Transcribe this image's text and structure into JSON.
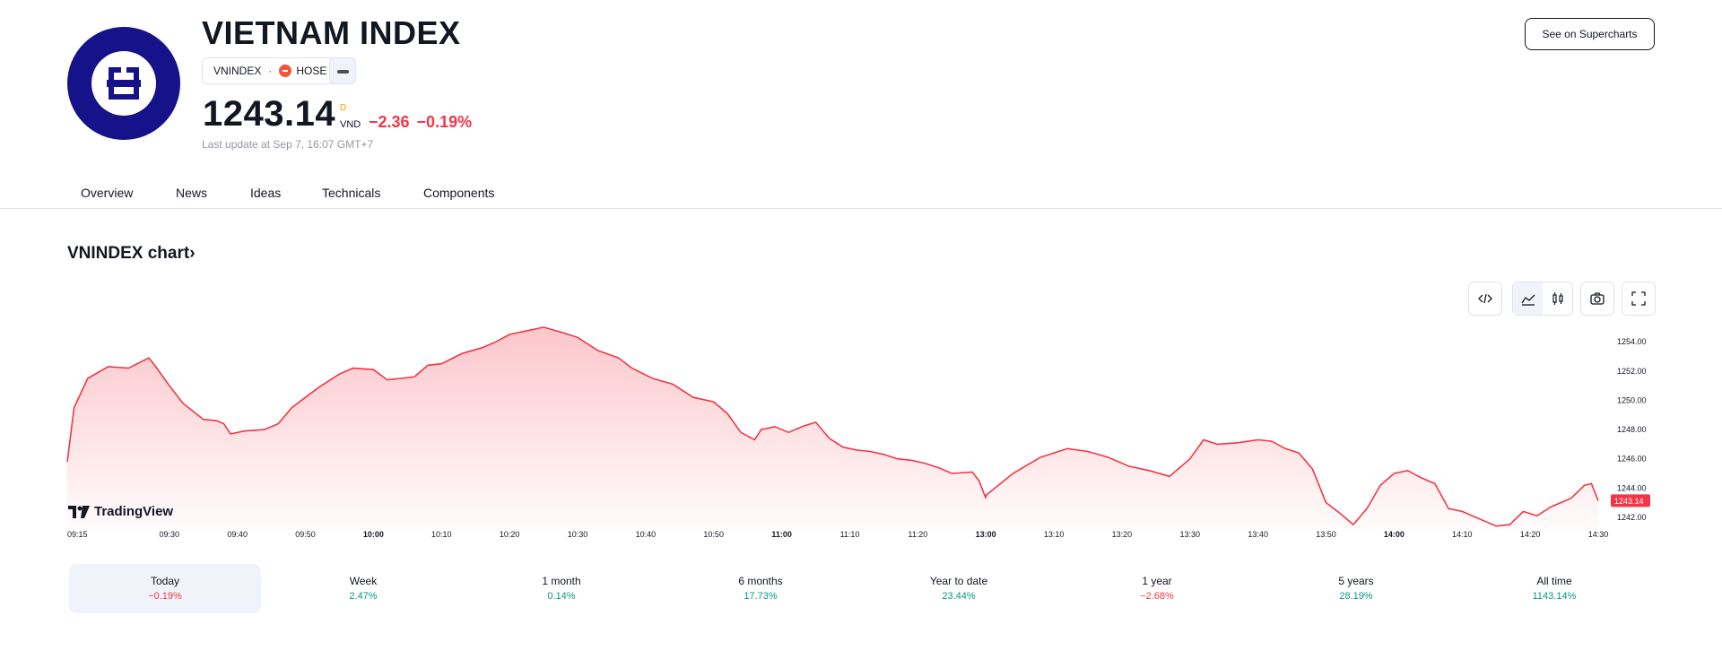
{
  "header": {
    "title": "VIETNAM INDEX",
    "symbol": "VNINDEX",
    "separator": "·",
    "exchange": "HOSE",
    "price": "1243.14",
    "market_status": "D",
    "currency": "VND",
    "change_abs": "−2.36",
    "change_pct": "−0.19%",
    "last_update": "Last update at Sep 7, 16:07 GMT+7",
    "supercharts_label": "See on Supercharts"
  },
  "tabs": [
    {
      "label": "Overview",
      "active": true
    },
    {
      "label": "News"
    },
    {
      "label": "Ideas"
    },
    {
      "label": "Technicals"
    },
    {
      "label": "Components"
    }
  ],
  "chart_section": {
    "title": "VNINDEX chart›",
    "watermark": "TradingView",
    "toolbar": [
      "embed-icon",
      "area-chart-icon",
      "candles-icon",
      "camera-icon",
      "fullscreen-icon"
    ]
  },
  "chart_data": {
    "type": "area",
    "series": [
      {
        "color": "#f23645"
      }
    ],
    "x_ticks": [
      "09:15",
      "09:30",
      "09:40",
      "09:50",
      "10:00",
      "10:10",
      "10:20",
      "10:30",
      "10:40",
      "10:50",
      "11:00",
      "11:10",
      "11:20",
      "13:00",
      "13:10",
      "13:20",
      "13:30",
      "13:40",
      "13:50",
      "14:00",
      "14:10",
      "14:20",
      "14:30"
    ],
    "bold_ticks": [
      "10:00",
      "11:00",
      "13:00",
      "14:00"
    ],
    "y_ticks": [
      "1254.00",
      "1252.00",
      "1250.00",
      "1248.00",
      "1246.00",
      "1244.00",
      "1242.00"
    ],
    "ylim": [
      1241.2,
      1255.3
    ],
    "last_value": "1243.14",
    "points": [
      [
        "09:15",
        1245.8
      ],
      [
        "09:16",
        1249.5
      ],
      [
        "09:18",
        1251.5
      ],
      [
        "09:21",
        1252.3
      ],
      [
        "09:24",
        1252.2
      ],
      [
        "09:27",
        1252.9
      ],
      [
        "09:28",
        1252.3
      ],
      [
        "09:30",
        1251.0
      ],
      [
        "09:32",
        1249.8
      ],
      [
        "09:35",
        1248.7
      ],
      [
        "09:37",
        1248.6
      ],
      [
        "09:38",
        1248.4
      ],
      [
        "09:39",
        1247.7
      ],
      [
        "09:41",
        1247.9
      ],
      [
        "09:44",
        1248.0
      ],
      [
        "09:46",
        1248.4
      ],
      [
        "09:48",
        1249.5
      ],
      [
        "09:52",
        1250.9
      ],
      [
        "09:55",
        1251.8
      ],
      [
        "09:57",
        1252.2
      ],
      [
        "10:00",
        1252.1
      ],
      [
        "10:02",
        1251.4
      ],
      [
        "10:04",
        1251.5
      ],
      [
        "10:06",
        1251.6
      ],
      [
        "10:08",
        1252.4
      ],
      [
        "10:10",
        1252.5
      ],
      [
        "10:13",
        1253.2
      ],
      [
        "10:16",
        1253.6
      ],
      [
        "10:18",
        1254.0
      ],
      [
        "10:20",
        1254.5
      ],
      [
        "10:23",
        1254.8
      ],
      [
        "10:25",
        1255.0
      ],
      [
        "10:28",
        1254.6
      ],
      [
        "10:30",
        1254.3
      ],
      [
        "10:33",
        1253.4
      ],
      [
        "10:36",
        1252.9
      ],
      [
        "10:38",
        1252.2
      ],
      [
        "10:41",
        1251.5
      ],
      [
        "10:44",
        1251.1
      ],
      [
        "10:47",
        1250.2
      ],
      [
        "10:50",
        1249.9
      ],
      [
        "10:52",
        1249.1
      ],
      [
        "10:54",
        1247.8
      ],
      [
        "10:56",
        1247.3
      ],
      [
        "10:57",
        1248.0
      ],
      [
        "10:59",
        1248.2
      ],
      [
        "11:01",
        1247.8
      ],
      [
        "11:03",
        1248.2
      ],
      [
        "11:05",
        1248.5
      ],
      [
        "11:07",
        1247.4
      ],
      [
        "11:09",
        1246.8
      ],
      [
        "11:11",
        1246.6
      ],
      [
        "11:13",
        1246.5
      ],
      [
        "11:15",
        1246.3
      ],
      [
        "11:17",
        1246.0
      ],
      [
        "11:19",
        1245.9
      ],
      [
        "11:21",
        1245.7
      ],
      [
        "11:23",
        1245.4
      ],
      [
        "11:25",
        1245.0
      ],
      [
        "11:28",
        1245.1
      ],
      [
        "11:29",
        1244.5
      ],
      [
        "11:30",
        1243.3
      ],
      [
        "13:00",
        1243.5
      ],
      [
        "13:04",
        1245.0
      ],
      [
        "13:08",
        1246.1
      ],
      [
        "13:12",
        1246.7
      ],
      [
        "13:15",
        1246.5
      ],
      [
        "13:18",
        1246.1
      ],
      [
        "13:21",
        1245.5
      ],
      [
        "13:24",
        1245.2
      ],
      [
        "13:27",
        1244.8
      ],
      [
        "13:30",
        1246.0
      ],
      [
        "13:32",
        1247.3
      ],
      [
        "13:34",
        1247.0
      ],
      [
        "13:37",
        1247.1
      ],
      [
        "13:40",
        1247.3
      ],
      [
        "13:42",
        1247.2
      ],
      [
        "13:44",
        1246.7
      ],
      [
        "13:46",
        1246.4
      ],
      [
        "13:48",
        1245.3
      ],
      [
        "13:50",
        1243.0
      ],
      [
        "13:52",
        1242.3
      ],
      [
        "13:54",
        1241.5
      ],
      [
        "13:56",
        1242.6
      ],
      [
        "13:58",
        1244.2
      ],
      [
        "14:00",
        1245.0
      ],
      [
        "14:02",
        1245.2
      ],
      [
        "14:04",
        1244.7
      ],
      [
        "14:06",
        1244.3
      ],
      [
        "14:08",
        1242.6
      ],
      [
        "14:10",
        1242.4
      ],
      [
        "14:13",
        1241.8
      ],
      [
        "14:15",
        1241.4
      ],
      [
        "14:17",
        1241.5
      ],
      [
        "14:19",
        1242.4
      ],
      [
        "14:21",
        1242.1
      ],
      [
        "14:23",
        1242.7
      ],
      [
        "14:26",
        1243.3
      ],
      [
        "14:28",
        1244.2
      ],
      [
        "14:29",
        1244.3
      ],
      [
        "14:30",
        1243.14
      ]
    ]
  },
  "periods": [
    {
      "label": "Today",
      "value": "−0.19%",
      "dir": "neg",
      "active": true
    },
    {
      "label": "Week",
      "value": "2.47%",
      "dir": "pos"
    },
    {
      "label": "1 month",
      "value": "0.14%",
      "dir": "pos"
    },
    {
      "label": "6 months",
      "value": "17.73%",
      "dir": "pos"
    },
    {
      "label": "Year to date",
      "value": "23.44%",
      "dir": "pos"
    },
    {
      "label": "1 year",
      "value": "−2.68%",
      "dir": "neg"
    },
    {
      "label": "5 years",
      "value": "28.19%",
      "dir": "pos"
    },
    {
      "label": "All time",
      "value": "1143.14%",
      "dir": "pos"
    }
  ],
  "colors": {
    "accent": "#2962ff",
    "negative": "#f23645",
    "positive": "#089981",
    "logo_bg": "#15128a"
  }
}
